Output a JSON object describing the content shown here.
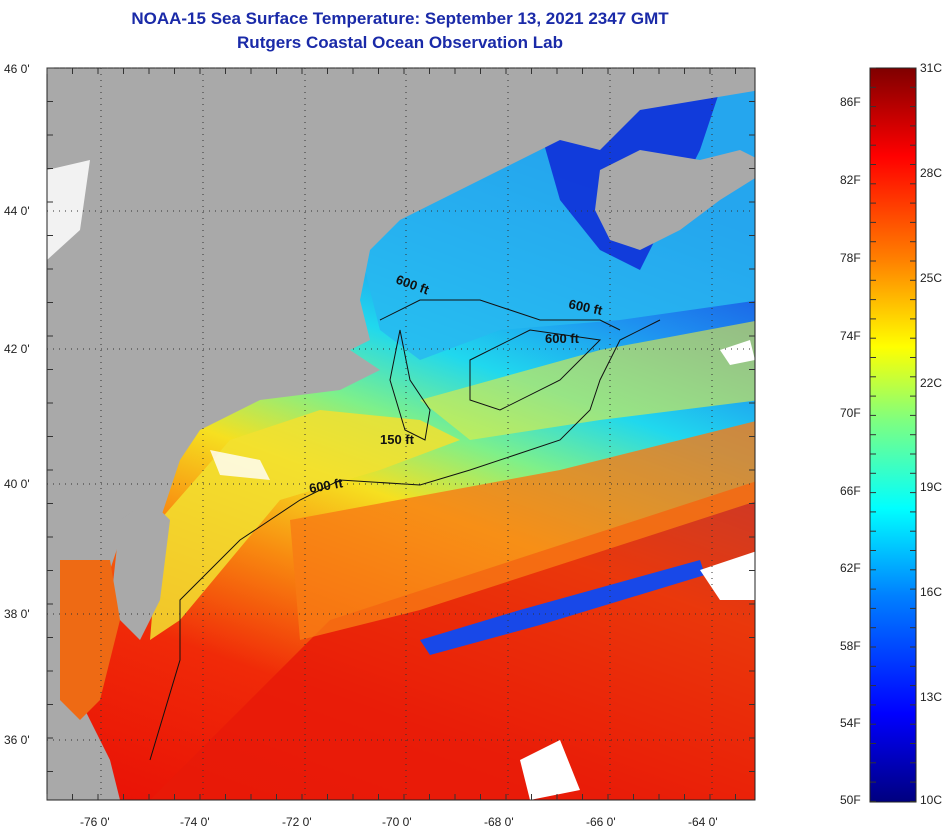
{
  "title": "NOAA-15 Sea Surface Temperature:  September 13, 2021 2347 GMT",
  "subtitle": "Rutgers Coastal Ocean Observation Lab",
  "latitude_labels": [
    "46 0'",
    "44 0'",
    "42 0'",
    "40 0'",
    "38 0'",
    "36 0'"
  ],
  "longitude_labels": [
    "-76 0'",
    "-74 0'",
    "-72 0'",
    "-70 0'",
    "-68 0'",
    "-66 0'",
    "-64 0'"
  ],
  "contour_labels": [
    "600 ft",
    "600 ft",
    "600 ft",
    "150 ft",
    "600 ft"
  ],
  "colorbar": {
    "fahrenheit_labels": [
      "86F",
      "82F",
      "78F",
      "74F",
      "70F",
      "66F",
      "62F",
      "58F",
      "54F",
      "50F"
    ],
    "celsius_labels": [
      "31C",
      "28C",
      "25C",
      "22C",
      "19C",
      "16C",
      "13C",
      "10C"
    ],
    "colors": [
      "#00007f",
      "#0000ff",
      "#007fff",
      "#00ffff",
      "#7fff7f",
      "#ffff00",
      "#ff7f00",
      "#ff0000",
      "#7f0000"
    ]
  },
  "colors": {
    "land": "#a9a9a9",
    "title": "#1a2aa8",
    "cloud": "#ffffff"
  }
}
